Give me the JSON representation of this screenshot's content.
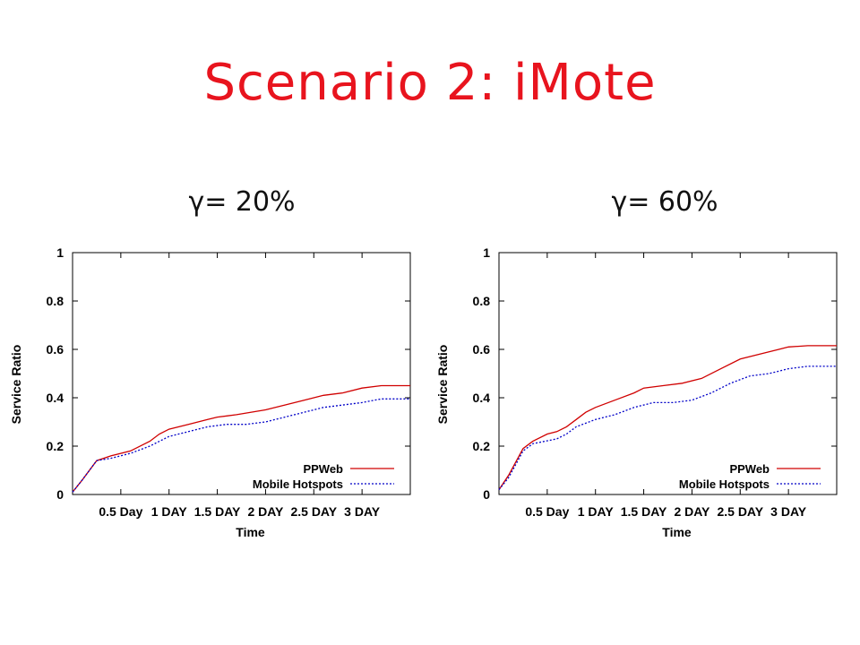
{
  "slide": {
    "title": "Scenario 2: iMote"
  },
  "colors": {
    "title": "#e8141e",
    "ppweb": "#d00000",
    "hotspots": "#0000c8"
  },
  "chart_data": [
    {
      "type": "line",
      "subtitle": "γ= 20%",
      "xlabel": "Time",
      "ylabel": "Service Ratio",
      "xlim": [
        0,
        3.5
      ],
      "ylim": [
        0,
        1
      ],
      "x_ticks": [
        {
          "x": 0.5,
          "label": "0.5 Day"
        },
        {
          "x": 1.0,
          "label": "1 DAY"
        },
        {
          "x": 1.5,
          "label": "1.5 DAY"
        },
        {
          "x": 2.0,
          "label": "2 DAY"
        },
        {
          "x": 2.5,
          "label": "2.5 DAY"
        },
        {
          "x": 3.0,
          "label": "3 DAY"
        }
      ],
      "y_ticks": [
        0,
        0.2,
        0.4,
        0.6,
        0.8,
        1
      ],
      "y_tick_labels": [
        "0",
        "0.2",
        "0.4",
        "0.6",
        "0.8",
        "1"
      ],
      "legend_position": "bottom-right",
      "series": [
        {
          "name": "PPWeb",
          "color": "#d00000",
          "dash": "solid",
          "x": [
            0,
            0.1,
            0.25,
            0.4,
            0.6,
            0.8,
            0.9,
            1.0,
            1.2,
            1.4,
            1.5,
            1.7,
            2.0,
            2.2,
            2.4,
            2.6,
            2.8,
            3.0,
            3.2,
            3.5
          ],
          "y": [
            0.01,
            0.06,
            0.14,
            0.16,
            0.18,
            0.22,
            0.25,
            0.27,
            0.29,
            0.31,
            0.32,
            0.33,
            0.35,
            0.37,
            0.39,
            0.41,
            0.42,
            0.44,
            0.45,
            0.45
          ]
        },
        {
          "name": "Mobile Hotspots",
          "color": "#0000c8",
          "dash": "dotted",
          "x": [
            0,
            0.1,
            0.25,
            0.4,
            0.6,
            0.8,
            1.0,
            1.2,
            1.4,
            1.6,
            1.8,
            2.0,
            2.2,
            2.4,
            2.6,
            2.8,
            3.0,
            3.2,
            3.5
          ],
          "y": [
            0.01,
            0.06,
            0.14,
            0.15,
            0.17,
            0.2,
            0.24,
            0.26,
            0.28,
            0.29,
            0.29,
            0.3,
            0.32,
            0.34,
            0.36,
            0.37,
            0.38,
            0.395,
            0.395
          ]
        }
      ]
    },
    {
      "type": "line",
      "subtitle": "γ= 60%",
      "xlabel": "Time",
      "ylabel": "Service Ratio",
      "xlim": [
        0,
        3.5
      ],
      "ylim": [
        0,
        1
      ],
      "x_ticks": [
        {
          "x": 0.5,
          "label": "0.5 Day"
        },
        {
          "x": 1.0,
          "label": "1 DAY"
        },
        {
          "x": 1.5,
          "label": "1.5 DAY"
        },
        {
          "x": 2.0,
          "label": "2 DAY"
        },
        {
          "x": 2.5,
          "label": "2.5 DAY"
        },
        {
          "x": 3.0,
          "label": "3 DAY"
        }
      ],
      "y_ticks": [
        0,
        0.2,
        0.4,
        0.6,
        0.8,
        1
      ],
      "y_tick_labels": [
        "0",
        "0.2",
        "0.4",
        "0.6",
        "0.8",
        "1"
      ],
      "legend_position": "bottom-right",
      "series": [
        {
          "name": "PPWeb",
          "color": "#d00000",
          "dash": "solid",
          "x": [
            0,
            0.1,
            0.25,
            0.35,
            0.5,
            0.6,
            0.7,
            0.8,
            0.9,
            1.0,
            1.2,
            1.4,
            1.5,
            1.7,
            1.9,
            2.1,
            2.3,
            2.5,
            2.7,
            2.9,
            3.0,
            3.2,
            3.5
          ],
          "y": [
            0.02,
            0.08,
            0.19,
            0.22,
            0.25,
            0.26,
            0.28,
            0.31,
            0.34,
            0.36,
            0.39,
            0.42,
            0.44,
            0.45,
            0.46,
            0.48,
            0.52,
            0.56,
            0.58,
            0.6,
            0.61,
            0.615,
            0.615
          ]
        },
        {
          "name": "Mobile Hotspots",
          "color": "#0000c8",
          "dash": "dotted",
          "x": [
            0,
            0.1,
            0.25,
            0.35,
            0.6,
            0.7,
            0.8,
            1.0,
            1.2,
            1.4,
            1.6,
            1.8,
            2.0,
            2.2,
            2.4,
            2.6,
            2.8,
            3.0,
            3.2,
            3.5
          ],
          "y": [
            0.02,
            0.07,
            0.18,
            0.21,
            0.23,
            0.25,
            0.28,
            0.31,
            0.33,
            0.36,
            0.38,
            0.38,
            0.39,
            0.42,
            0.46,
            0.49,
            0.5,
            0.52,
            0.53,
            0.53
          ]
        }
      ]
    }
  ]
}
